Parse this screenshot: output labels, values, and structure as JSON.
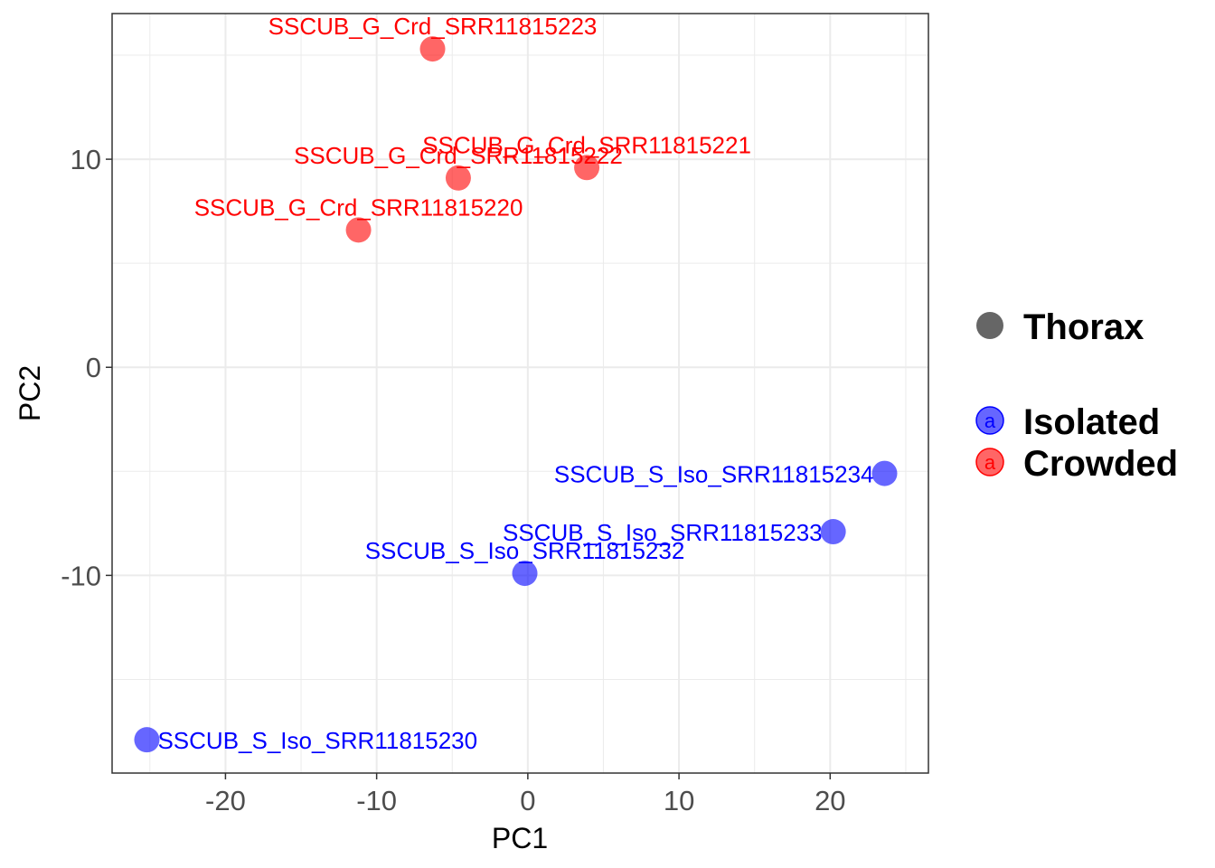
{
  "chart_data": {
    "type": "scatter",
    "title": "",
    "xlabel": "PC1",
    "ylabel": "PC2",
    "xlim": [
      -27.5,
      26.5
    ],
    "ylim": [
      -19.5,
      17
    ],
    "x_ticks": [
      -20,
      -10,
      0,
      10,
      20
    ],
    "x_tick_labels": [
      "-20",
      "-10",
      "0",
      "10",
      "20"
    ],
    "y_ticks": [
      -10,
      0,
      10
    ],
    "y_tick_labels": [
      "-10",
      "0",
      "10"
    ],
    "grid": true,
    "colors": {
      "Isolated": "#0000ff",
      "Crowded": "#ff0000",
      "shape_key": "#666666"
    },
    "legend": {
      "position": "right",
      "shape_title": "Thorax",
      "key_glyph": "a",
      "entries": [
        "Isolated",
        "Crowded"
      ]
    },
    "points": [
      {
        "label": "SSCUB_G_Crd_SRR11815223",
        "group": "Crowded",
        "x": -6.3,
        "y": 15.3
      },
      {
        "label": "SSCUB_G_Crd_SRR11815221",
        "group": "Crowded",
        "x": 3.9,
        "y": 9.6
      },
      {
        "label": "SSCUB_G_Crd_SRR11815222",
        "group": "Crowded",
        "x": -4.6,
        "y": 9.1
      },
      {
        "label": "SSCUB_G_Crd_SRR11815220",
        "group": "Crowded",
        "x": -11.2,
        "y": 6.6
      },
      {
        "label": "SSCUB_S_Iso_SRR11815234",
        "group": "Isolated",
        "x": 23.6,
        "y": -5.1
      },
      {
        "label": "SSCUB_S_Iso_SRR11815233",
        "group": "Isolated",
        "x": 20.2,
        "y": -7.9
      },
      {
        "label": "SSCUB_S_Iso_SRR11815232",
        "group": "Isolated",
        "x": -0.2,
        "y": -9.9
      },
      {
        "label": "SSCUB_S_Iso_SRR11815230",
        "group": "Isolated",
        "x": -25.2,
        "y": -17.9
      }
    ]
  }
}
